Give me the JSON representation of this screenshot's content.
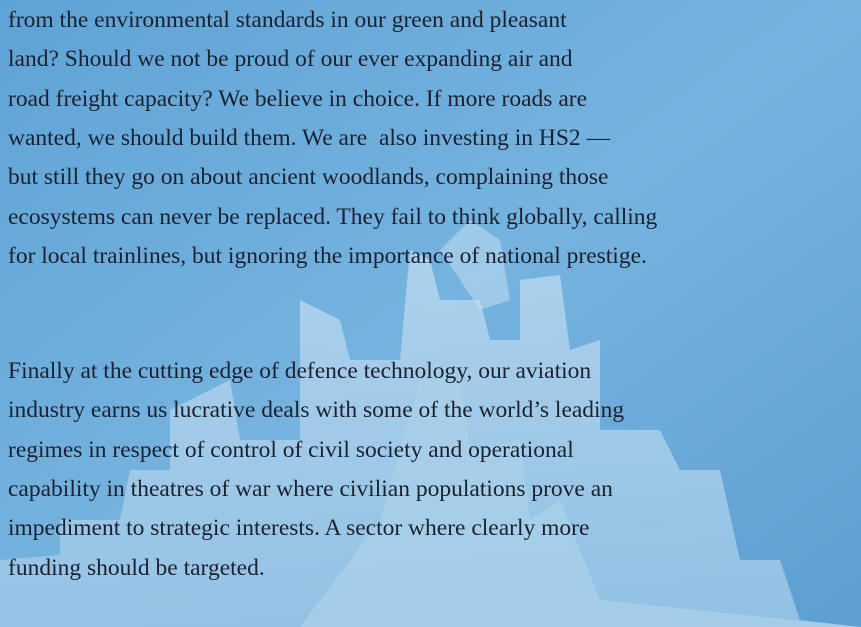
{
  "paragraphs": [
    {
      "lines": [
        "from the environmental standards in our green and pleasant",
        "land? Should we not be proud of our ever expanding air and",
        "road freight capacity? We believe in choice. If more roads are",
        "wanted, we should build them. We are  also investing in HS2 —",
        "but still they go on about ancient woodlands, complaining those",
        "ecosystems can never be replaced. They fail to think globally, calling",
        "for local trainlines, but ignoring the importance of national prestige."
      ]
    },
    {
      "lines": [
        "Finally at the cutting edge of defence technology, our aviation",
        "industry earns us lucrative deals with some of the world’s leading",
        "regimes in respect of control of civil society and operational",
        "capability in theatres of war where civilian populations prove an",
        "impediment to strategic interests. A sector where clearly more",
        "funding should be targeted."
      ]
    }
  ]
}
